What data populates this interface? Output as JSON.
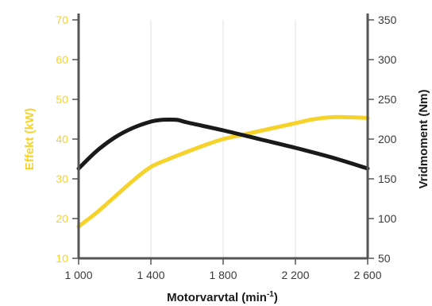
{
  "chart_data": {
    "type": "line",
    "xlabel_main": "Motorvarvtal (min",
    "xlabel_sup": "-1",
    "xlabel_close": ")",
    "ylabel_left": "Effekt (kW)",
    "ylabel_right": "Vridmoment (Nm)",
    "xlim": [
      1000,
      2600
    ],
    "ylim_left": [
      10,
      70
    ],
    "ylim_right": [
      50,
      350
    ],
    "x_ticks": [
      1000,
      1400,
      1800,
      2200,
      2600
    ],
    "x_tick_labels": [
      "1 000",
      "1 400",
      "1 800",
      "2 200",
      "2 600"
    ],
    "y_left_ticks": [
      10,
      20,
      30,
      40,
      50,
      60,
      70
    ],
    "y_left_tick_labels": [
      "10",
      "20",
      "30",
      "40",
      "50",
      "60",
      "70"
    ],
    "y_right_ticks": [
      50,
      100,
      150,
      200,
      250,
      300,
      350
    ],
    "y_right_tick_labels": [
      "50",
      "100",
      "150",
      "200",
      "250",
      "300",
      "350"
    ],
    "grid": "vertical",
    "colors": {
      "power": "#f6d32b",
      "torque": "#1a1a1a",
      "axis": "#555555",
      "grid": "#e2e2e2"
    },
    "series": [
      {
        "key": "power",
        "axis": "left",
        "x": [
          1000,
          1100,
          1200,
          1300,
          1400,
          1500,
          1600,
          1700,
          1800,
          1900,
          2000,
          2100,
          2200,
          2300,
          2400,
          2500,
          2600
        ],
        "values": [
          18,
          21.5,
          25.5,
          29.5,
          33,
          35,
          36.8,
          38.5,
          40,
          41,
          42,
          43,
          44,
          45,
          45.5,
          45.5,
          45.3
        ]
      },
      {
        "key": "torque",
        "axis": "right",
        "x": [
          1000,
          1100,
          1200,
          1300,
          1400,
          1450,
          1500,
          1550,
          1600,
          1800,
          2000,
          2200,
          2400,
          2600
        ],
        "values": [
          163,
          185,
          202,
          214,
          222,
          224,
          224.5,
          224,
          221,
          211,
          200,
          189,
          177,
          163
        ]
      }
    ]
  }
}
